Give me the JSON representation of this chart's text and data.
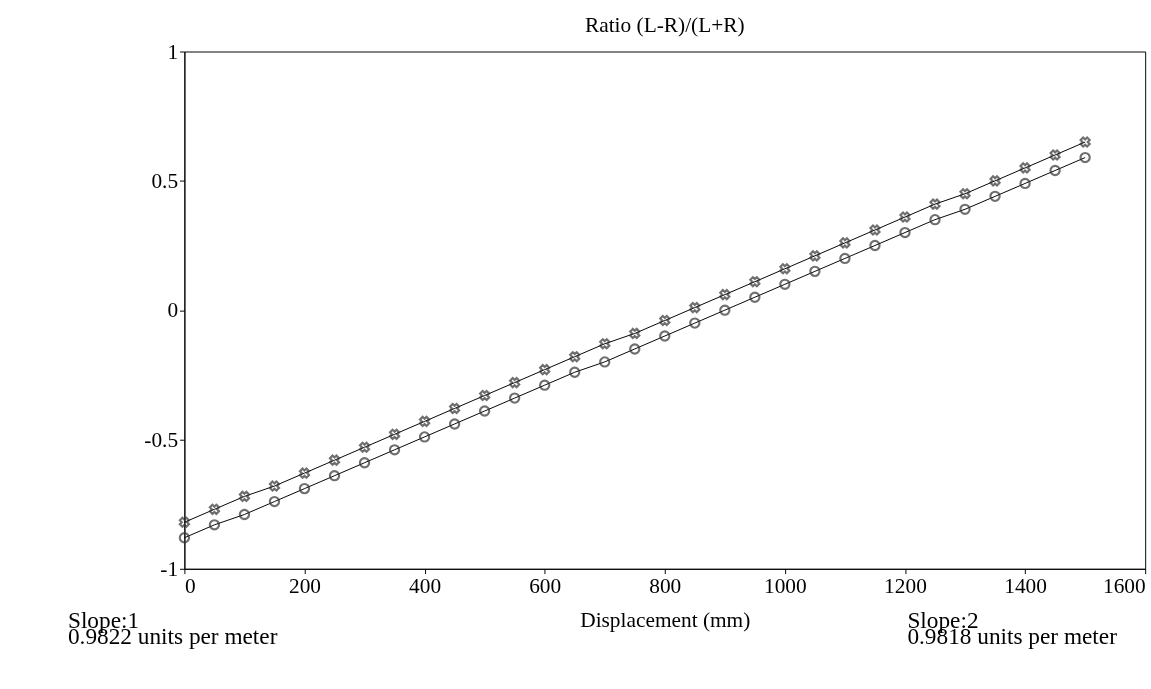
{
  "chart_data": {
    "type": "line",
    "title": "Ratio (L-R)/(L+R)",
    "xlabel": "Displacement (mm)",
    "x": [
      0,
      50,
      100,
      150,
      200,
      250,
      300,
      350,
      400,
      450,
      500,
      550,
      600,
      650,
      700,
      750,
      800,
      850,
      900,
      950,
      1000,
      1050,
      1100,
      1150,
      1200,
      1250,
      1300,
      1350,
      1400,
      1450,
      1500
    ],
    "series": [
      {
        "color": "#000000",
        "marker": "cross",
        "values": [
          -0.82,
          -0.77,
          -0.72,
          -0.68,
          -0.63,
          -0.58,
          -0.53,
          -0.48,
          -0.43,
          -0.38,
          -0.33,
          -0.28,
          -0.23,
          -0.18,
          -0.13,
          -0.09,
          -0.04,
          0.01,
          0.06,
          0.11,
          0.16,
          0.21,
          0.26,
          0.31,
          0.36,
          0.41,
          0.45,
          0.5,
          0.55,
          0.6,
          0.65
        ]
      },
      {
        "color": "#000000",
        "marker": "circle",
        "values": [
          -0.88,
          -0.83,
          -0.79,
          -0.74,
          -0.69,
          -0.64,
          -0.59,
          -0.54,
          -0.49,
          -0.44,
          -0.39,
          -0.34,
          -0.29,
          -0.24,
          -0.2,
          -0.15,
          -0.1,
          -0.05,
          0.0,
          0.05,
          0.1,
          0.15,
          0.2,
          0.25,
          0.3,
          0.35,
          0.39,
          0.44,
          0.49,
          0.54,
          0.59
        ]
      }
    ],
    "xlim": [
      0,
      1600
    ],
    "xticks": [
      0,
      200,
      400,
      600,
      800,
      1000,
      1200,
      1400,
      1600
    ],
    "ylim": [
      -1,
      1
    ],
    "yticks": [
      {
        "value": -1,
        "label": "-1"
      },
      {
        "value": -0.5,
        "label": "-0.5"
      },
      0,
      0.5,
      1
    ],
    "grid": false,
    "legend": false,
    "line_style": "solid",
    "annotations": [
      "Slope:1\n0.9822 units per meter",
      "Slope:2\n0.9818 units per meter"
    ]
  }
}
